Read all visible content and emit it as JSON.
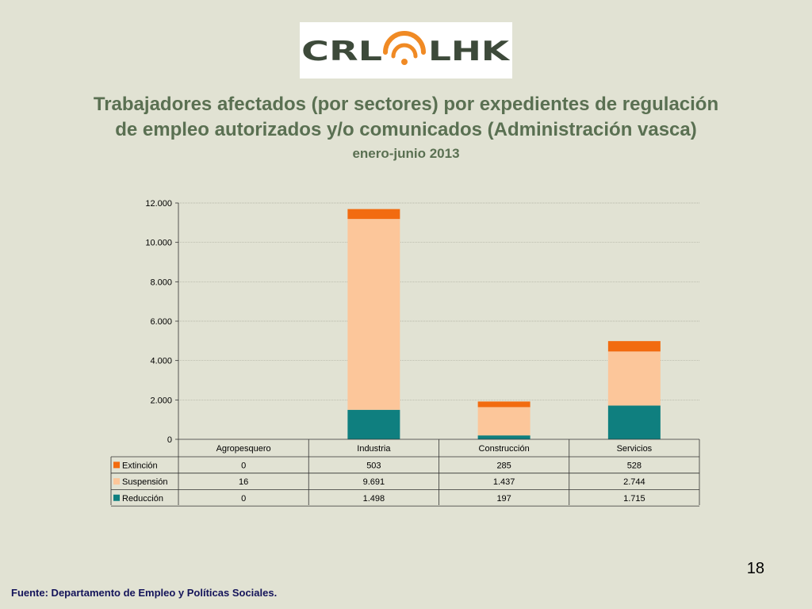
{
  "logo": {
    "left_text": "CRL",
    "right_text": "LHK",
    "text_color": "#3d4a3a",
    "accent_color": "#f08a24"
  },
  "title": {
    "line1": "Trabajadores afectados (por sectores) por expedientes de regulación",
    "line2": "de empleo autorizados y/o comunicados (Administración vasca)",
    "period": "enero-junio 2013"
  },
  "chart_data": {
    "type": "bar",
    "stacked": true,
    "categories": [
      "Agropesquero",
      "Industria",
      "Construcción",
      "Servicios"
    ],
    "series": [
      {
        "name": "Reducción",
        "color": "#0f7f7f",
        "values": [
          0,
          1498,
          197,
          1715
        ],
        "labels": [
          "0",
          "1.498",
          "197",
          "1.715"
        ]
      },
      {
        "name": "Suspensión",
        "color": "#fcc69a",
        "values": [
          16,
          9691,
          1437,
          2744
        ],
        "labels": [
          "16",
          "9.691",
          "1.437",
          "2.744"
        ]
      },
      {
        "name": "Extinción",
        "color": "#f26b10",
        "values": [
          0,
          503,
          285,
          528
        ],
        "labels": [
          "0",
          "503",
          "285",
          "528"
        ]
      }
    ],
    "table_row_order": [
      "Extinción",
      "Suspensión",
      "Reducción"
    ],
    "ylim": [
      0,
      12000
    ],
    "yticks": [
      0,
      2000,
      4000,
      6000,
      8000,
      10000,
      12000
    ],
    "ytick_labels": [
      "0",
      "2.000",
      "4.000",
      "6.000",
      "8.000",
      "10.000",
      "12.000"
    ],
    "grid": true,
    "legend": "data-table"
  },
  "page_number": "18",
  "source": "Fuente: Departamento de Empleo y Políticas Sociales."
}
